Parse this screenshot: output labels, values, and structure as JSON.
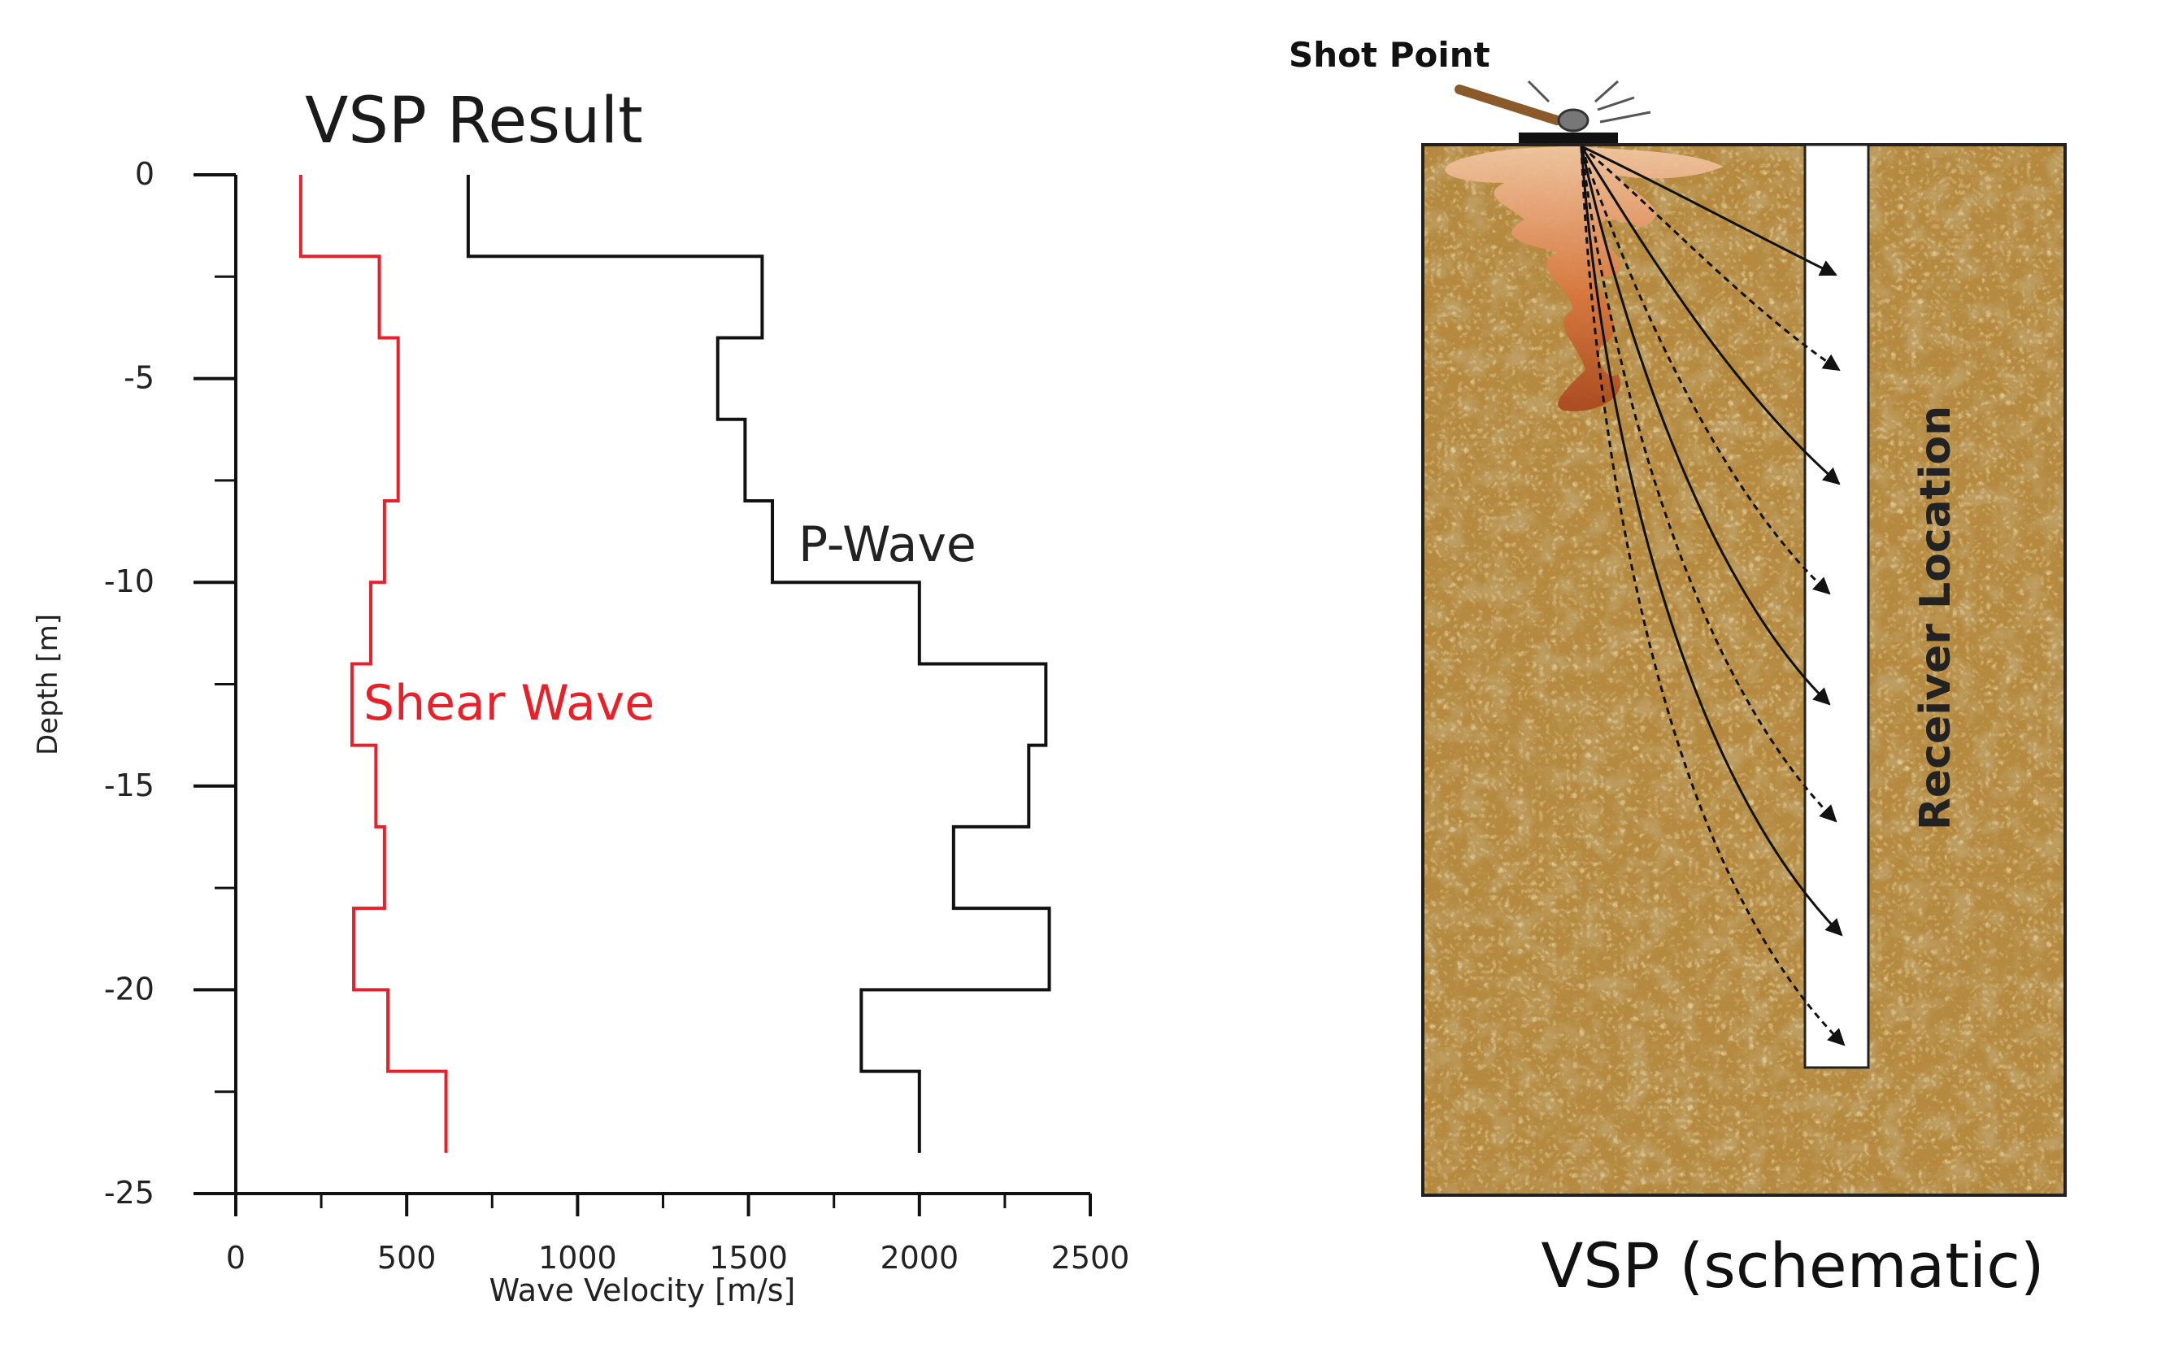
{
  "chart_data": [
    {
      "type": "line",
      "title": "VSP Result",
      "xlabel": "Wave Velocity [m/s]",
      "ylabel": "Depth [m]",
      "xlim": [
        0,
        2500
      ],
      "ylim": [
        -25,
        0
      ],
      "x_ticks": [
        0,
        500,
        1000,
        1500,
        2000,
        2500
      ],
      "y_ticks": [
        0,
        -5,
        -10,
        -15,
        -20,
        -25
      ],
      "grid": false,
      "legend": "inline labels",
      "series": [
        {
          "name": "Shear Wave",
          "color": "#e8202a",
          "step_profile": [
            {
              "v": 190,
              "top": 0,
              "bottom": -2
            },
            {
              "v": 420,
              "top": -2,
              "bottom": -4
            },
            {
              "v": 475,
              "top": -4,
              "bottom": -8
            },
            {
              "v": 435,
              "top": -8,
              "bottom": -10
            },
            {
              "v": 395,
              "top": -10,
              "bottom": -12
            },
            {
              "v": 340,
              "top": -12,
              "bottom": -14
            },
            {
              "v": 410,
              "top": -14,
              "bottom": -16
            },
            {
              "v": 435,
              "top": -16,
              "bottom": -18
            },
            {
              "v": 345,
              "top": -18,
              "bottom": -20
            },
            {
              "v": 445,
              "top": -20,
              "bottom": -22
            },
            {
              "v": 615,
              "top": -22,
              "bottom": -24
            }
          ]
        },
        {
          "name": "P-Wave",
          "color": "#111111",
          "step_profile": [
            {
              "v": 680,
              "top": 0,
              "bottom": -2
            },
            {
              "v": 1540,
              "top": -2,
              "bottom": -4
            },
            {
              "v": 1410,
              "top": -4,
              "bottom": -6
            },
            {
              "v": 1490,
              "top": -6,
              "bottom": -8
            },
            {
              "v": 1570,
              "top": -8,
              "bottom": -10
            },
            {
              "v": 2000,
              "top": -10,
              "bottom": -12
            },
            {
              "v": 2370,
              "top": -12,
              "bottom": -14
            },
            {
              "v": 2320,
              "top": -14,
              "bottom": -16
            },
            {
              "v": 2100,
              "top": -16,
              "bottom": -18
            },
            {
              "v": 2380,
              "top": -18,
              "bottom": -20
            },
            {
              "v": 1830,
              "top": -20,
              "bottom": -22
            },
            {
              "v": 2000,
              "top": -22,
              "bottom": -24
            }
          ]
        }
      ]
    },
    {
      "type": "diagram",
      "title": "VSP (schematic)",
      "labels": {
        "shot_point": "Shot Point",
        "receiver_location": "Receiver Location"
      },
      "receiver_count": 8,
      "colors": {
        "soil": "#b58a40",
        "soil_dark": "#7a5320",
        "soil_light": "#d3ad63",
        "wave": "#c1612b",
        "borehole": "#ffffff"
      }
    }
  ]
}
